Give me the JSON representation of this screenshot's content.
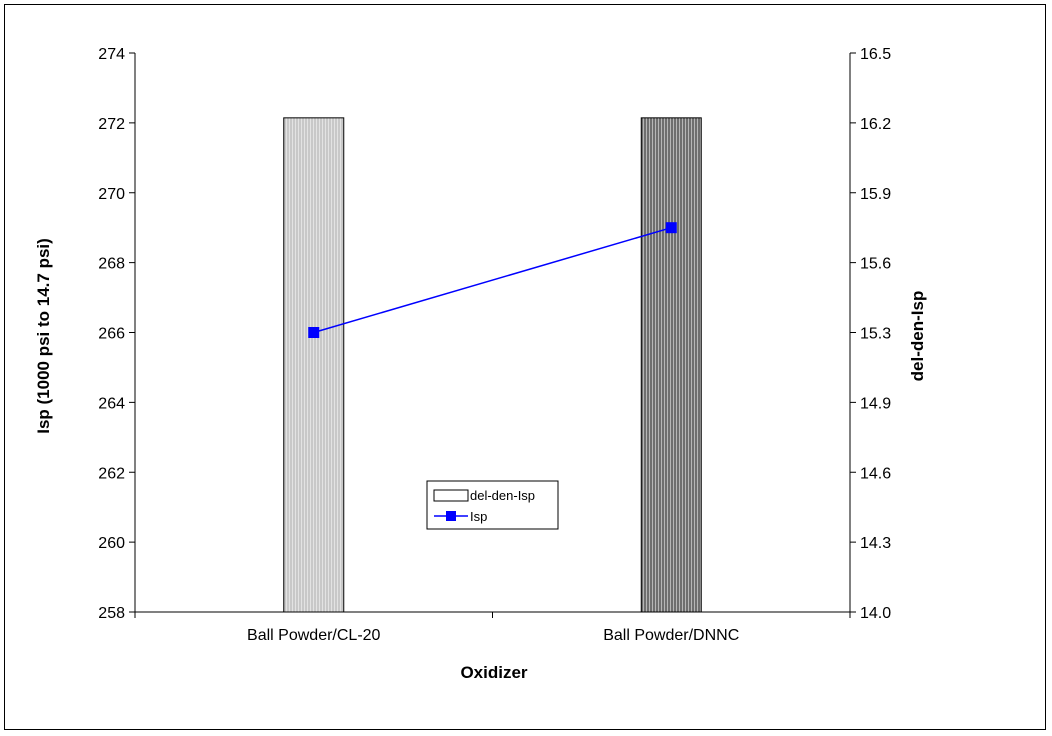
{
  "chart_data": {
    "type": "bar",
    "categories": [
      "Ball Powder/CL-20",
      "Ball Powder/DNNC"
    ],
    "xlabel": "Oxidizer",
    "ylabel": "Isp (1000 psi to 14.7 psi)",
    "y2label": "del-den-Isp",
    "ylim": [
      258,
      274
    ],
    "y2lim": [
      14.0,
      16.5
    ],
    "yticks": [
      "258",
      "260",
      "262",
      "264",
      "266",
      "268",
      "270",
      "272",
      "274"
    ],
    "y2ticks": [
      "14.0",
      "14.3",
      "14.6",
      "14.9",
      "15.3",
      "15.6",
      "15.9",
      "16.2",
      "16.5"
    ],
    "series": [
      {
        "name": "del-den-Isp",
        "type": "bar",
        "axis": "right",
        "values": [
          16.21,
          16.21
        ],
        "fills": [
          "#c8c8c8",
          "#6e6e6e"
        ]
      },
      {
        "name": "Isp",
        "type": "line",
        "axis": "left",
        "values": [
          266.0,
          269.0
        ],
        "color": "#0000ff"
      }
    ],
    "legend": {
      "position": "center",
      "entries": [
        "del-den-Isp",
        "Isp"
      ]
    },
    "grid": false
  }
}
